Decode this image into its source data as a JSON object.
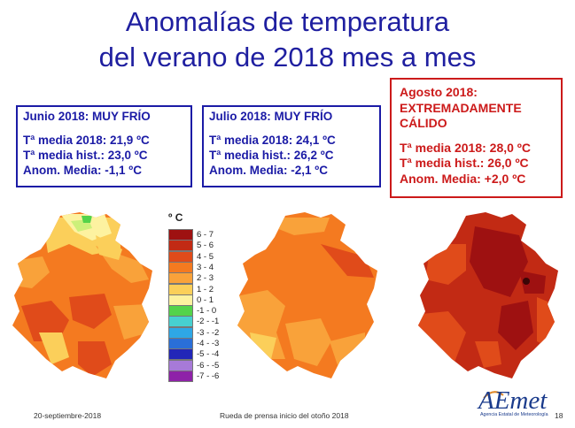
{
  "title": {
    "line1": "Anomalías de temperatura",
    "line2": "del verano de 2018 mes a mes"
  },
  "boxes": {
    "junio": {
      "header": "Junio 2018: MUY FRÍO",
      "media": "Tª media 2018: 21,9 ºC",
      "hist": "Tª media hist.: 23,0 ºC",
      "anom": "Anom. Media: -1,1 ºC",
      "border_color": "#1b1ba6"
    },
    "julio": {
      "header": "Julio 2018: MUY FRÍO",
      "media": "Tª media 2018: 24,1 ºC",
      "hist": "Tª media hist.: 26,2 ºC",
      "anom": "Anom. Media:  -2,1 ºC",
      "border_color": "#1b1ba6"
    },
    "agosto": {
      "header_line1": "Agosto 2018:",
      "header_line2": "EXTREMADAMENTE",
      "header_line3": "CÁLIDO",
      "media": "Tª media 2018: 28,0 ºC",
      "hist": "Tª media hist.: 26,0 ºC",
      "anom": "Anom. Media: +2,0 ºC",
      "border_color": "#cc1a1a"
    }
  },
  "legend": {
    "unit": "º C",
    "items": [
      {
        "label": "6 - 7",
        "color": "#9e1111"
      },
      {
        "label": "5 - 6",
        "color": "#c22a14"
      },
      {
        "label": "4 - 5",
        "color": "#e04b1a"
      },
      {
        "label": "3 - 4",
        "color": "#f47a20"
      },
      {
        "label": "2 - 3",
        "color": "#f9a23a"
      },
      {
        "label": "1 - 2",
        "color": "#fbcf5a"
      },
      {
        "label": "0 - 1",
        "color": "#fdf2a0"
      },
      {
        "label": "-1 - 0",
        "color": "#53d34a"
      },
      {
        "label": "-2 - -1",
        "color": "#47d0d0"
      },
      {
        "label": "-3 - -2",
        "color": "#2ea7e6"
      },
      {
        "label": "-4 - -3",
        "color": "#2a6fd8"
      },
      {
        "label": "-5 - -4",
        "color": "#2226b8"
      },
      {
        "label": "-6 - -5",
        "color": "#a77ad8"
      },
      {
        "label": "-7 - -6",
        "color": "#8e22a8"
      }
    ]
  },
  "footer": {
    "date": "20-septiembre-2018",
    "event": "Rueda de prensa inicio del otoño 2018",
    "page": "18"
  },
  "logo": {
    "text": "AEmet",
    "subtitle": "Agencia Estatal de Meteorología"
  }
}
